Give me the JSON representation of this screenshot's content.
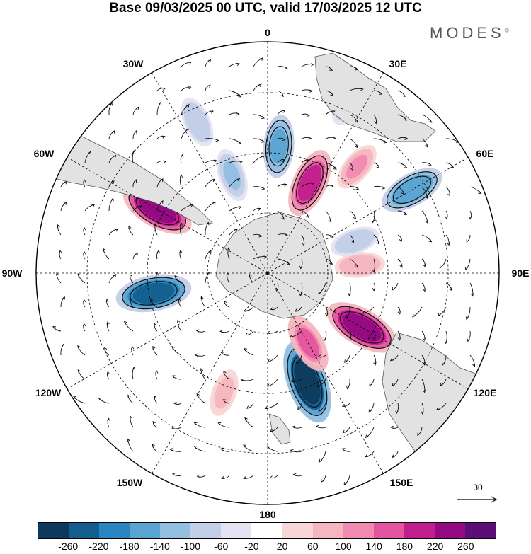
{
  "title": "Base 09/03/2025 00 UTC, valid 17/03/2025 12 UTC",
  "brand": "MODES",
  "brand_mark": "©",
  "longitude_labels": {
    "top": "0",
    "top_right": "30E",
    "right_upper": "60E",
    "right": "90E",
    "right_lower": "120E",
    "bottom_right": "150E",
    "bottom": "180",
    "bottom_left": "150W",
    "left_lower": "120W",
    "left": "90W",
    "left_upper": "60W",
    "top_left": "30W"
  },
  "reference_vector": {
    "label": "30"
  },
  "colorbar": {
    "colors": [
      "#0d3a5c",
      "#135e8e",
      "#2a86c0",
      "#5aa4d2",
      "#93bfe0",
      "#c3cfe8",
      "#e3e3f2",
      "#ffffff",
      "#f9d6d6",
      "#f6b6c0",
      "#f08ab0",
      "#e4559f",
      "#c21f8e",
      "#930a84",
      "#5d0d76"
    ],
    "tick_labels": [
      "-260",
      "-220",
      "-180",
      "-140",
      "-100",
      "-60",
      "-20",
      "20",
      "60",
      "100",
      "140",
      "180",
      "220",
      "260"
    ]
  },
  "anomalies": [
    {
      "lon": -100,
      "colat": 0.5,
      "value": -230
    },
    {
      "lon": -60,
      "colat": 0.55,
      "value": 230
    },
    {
      "lon": 160,
      "colat": 0.5,
      "value": -280
    },
    {
      "lon": 120,
      "colat": 0.47,
      "value": 240
    },
    {
      "lon": 25,
      "colat": 0.43,
      "value": 200
    },
    {
      "lon": 5,
      "colat": 0.55,
      "value": -160
    },
    {
      "lon": -20,
      "colat": 0.45,
      "value": -110
    },
    {
      "lon": 60,
      "colat": 0.72,
      "value": -180
    },
    {
      "lon": 150,
      "colat": 0.35,
      "value": 150
    },
    {
      "lon": -160,
      "colat": 0.55,
      "value": 80
    },
    {
      "lon": 85,
      "colat": 0.4,
      "value": 90
    },
    {
      "lon": 25,
      "colat": 0.83,
      "value": -120
    },
    {
      "lon": -25,
      "colat": 0.72,
      "value": -100
    },
    {
      "lon": 40,
      "colat": 0.6,
      "value": 100
    },
    {
      "lon": 70,
      "colat": 0.4,
      "value": -90
    }
  ]
}
